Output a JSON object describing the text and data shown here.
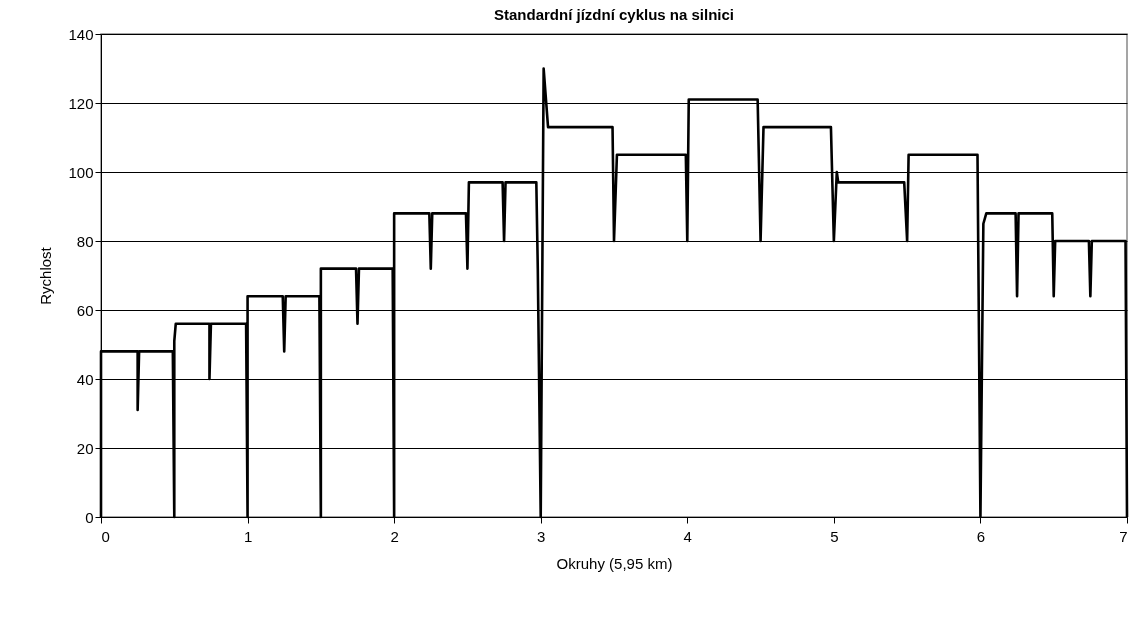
{
  "chart_data": {
    "type": "line",
    "title": "Standardní jízdní cyklus na silnici",
    "xlabel": "Okruhy (5,95 km)",
    "ylabel": "Rychlost",
    "x": [
      0,
      0,
      0.25,
      0.25,
      0.26,
      0.49,
      0.5,
      0.5,
      0.51,
      0.74,
      0.74,
      0.75,
      0.99,
      1.0,
      1.0,
      1.24,
      1.25,
      1.26,
      1.49,
      1.5,
      1.5,
      1.74,
      1.75,
      1.76,
      1.99,
      2.0,
      2.0,
      2.24,
      2.25,
      2.26,
      2.49,
      2.5,
      2.51,
      2.74,
      2.75,
      2.76,
      2.97,
      2.98,
      3.0,
      3.02,
      3.05,
      3.49,
      3.5,
      3.52,
      3.99,
      4.0,
      4.01,
      4.48,
      4.5,
      4.52,
      4.98,
      5.0,
      5.02,
      5.03,
      5.48,
      5.5,
      5.51,
      5.98,
      6.0,
      6.02,
      6.04,
      6.24,
      6.25,
      6.26,
      6.49,
      6.5,
      6.51,
      6.74,
      6.75,
      6.76,
      6.99,
      7.0
    ],
    "series": [
      {
        "color": "#000000",
        "values": [
          0,
          48,
          48,
          31,
          48,
          48,
          0,
          51,
          56,
          56,
          40,
          56,
          56,
          0,
          64,
          64,
          48,
          64,
          64,
          0,
          72,
          72,
          56,
          72,
          72,
          0,
          88,
          88,
          72,
          88,
          88,
          72,
          97,
          97,
          80,
          97,
          97,
          72,
          0,
          130,
          113,
          113,
          80,
          105,
          105,
          80,
          121,
          121,
          80,
          113,
          113,
          80,
          100,
          97,
          97,
          80,
          105,
          105,
          0,
          85,
          88,
          88,
          64,
          88,
          88,
          64,
          80,
          80,
          64,
          80,
          80,
          0
        ]
      }
    ],
    "xlim": [
      0,
      7
    ],
    "xticks": [
      0,
      1,
      2,
      3,
      4,
      5,
      6,
      7
    ],
    "ylim": [
      0,
      140
    ],
    "yticks": [
      0,
      20,
      40,
      60,
      80,
      100,
      120,
      140
    ],
    "grid": "y",
    "marker": "none",
    "line_style": "solid"
  }
}
